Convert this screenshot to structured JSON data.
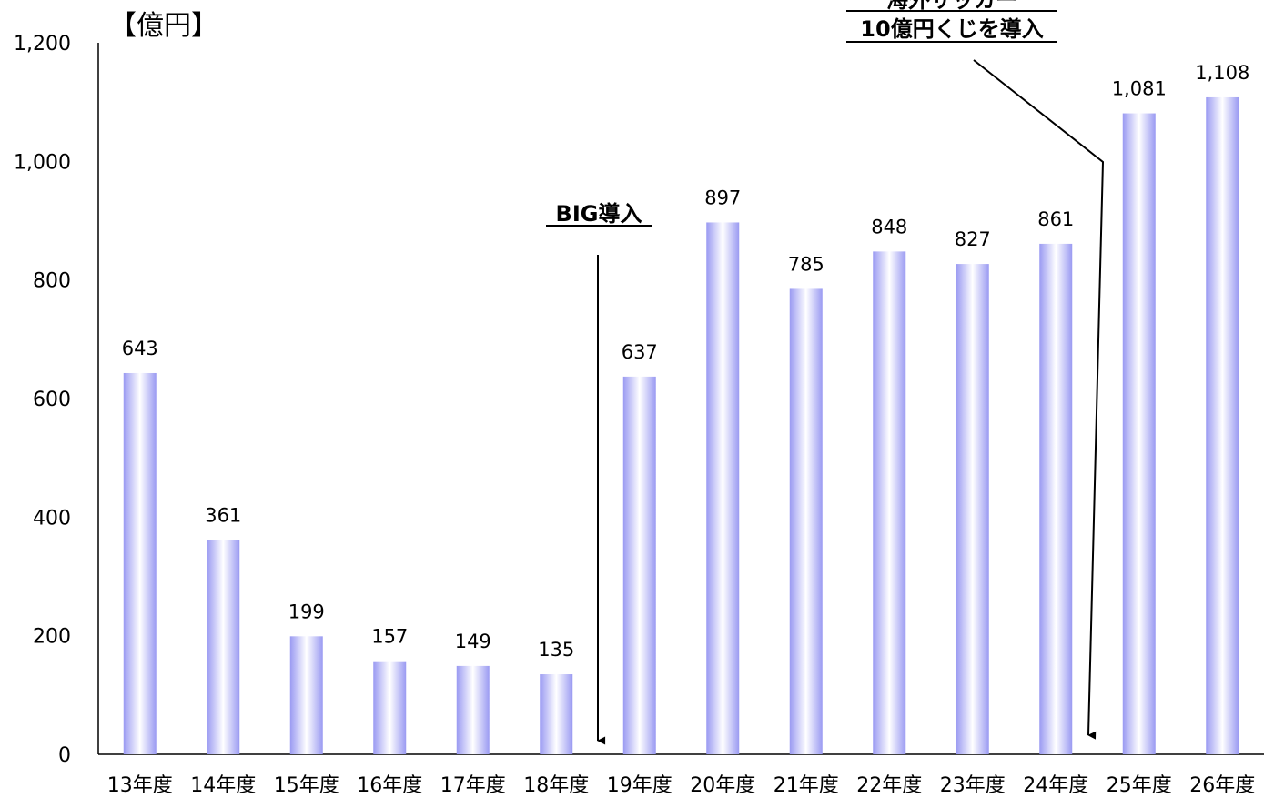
{
  "chart_data": {
    "type": "bar",
    "unit_label": "【億円】",
    "categories": [
      "13年度",
      "14年度",
      "15年度",
      "16年度",
      "17年度",
      "18年度",
      "19年度",
      "20年度",
      "21年度",
      "22年度",
      "23年度",
      "24年度",
      "25年度",
      "26年度"
    ],
    "values": [
      643,
      361,
      199,
      157,
      149,
      135,
      637,
      897,
      785,
      848,
      827,
      861,
      1081,
      1108
    ],
    "value_labels": [
      "643",
      "361",
      "199",
      "157",
      "149",
      "135",
      "637",
      "897",
      "785",
      "848",
      "827",
      "861",
      "1,081",
      "1,108"
    ],
    "ylim": [
      0,
      1200
    ],
    "yticks": [
      0,
      200,
      400,
      600,
      800,
      1000,
      1200
    ],
    "ytick_labels": [
      "0",
      "200",
      "400",
      "600",
      "800",
      "1,000",
      "1,200"
    ],
    "grid": false,
    "bar_gradient": {
      "edge": "#9a9af2",
      "center": "#ffffff"
    },
    "annotations": [
      {
        "id": "big",
        "lines": [
          "BIG導入"
        ],
        "points_before": "19年度"
      },
      {
        "id": "overseas",
        "lines": [
          "海外サッカー",
          "10億円くじを導入"
        ],
        "points_before": "25年度"
      }
    ]
  }
}
